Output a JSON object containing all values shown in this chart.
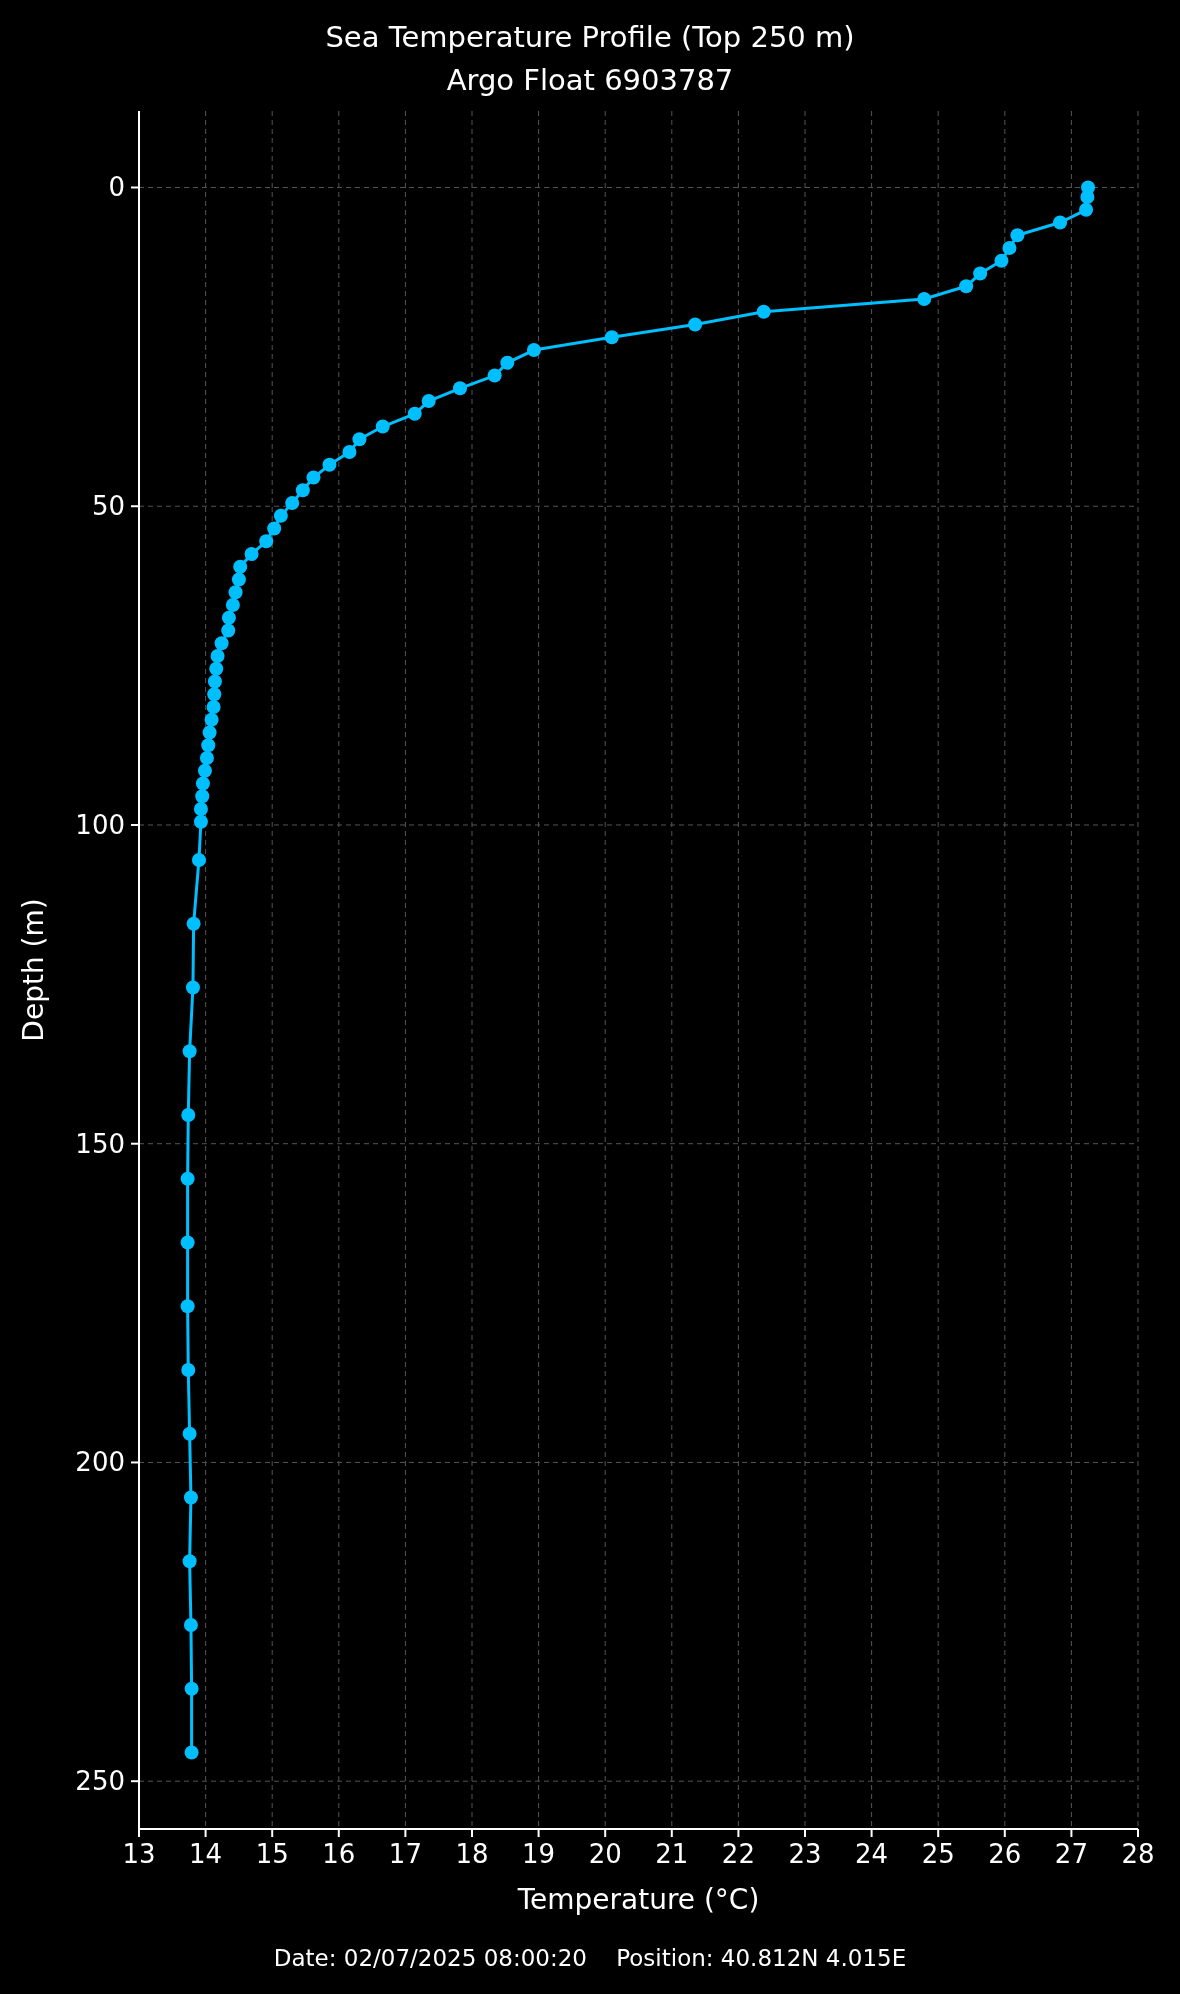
{
  "chart_data": {
    "type": "line",
    "title": "Sea Temperature Profile (Top 250 m)",
    "subtitle": "Argo Float 6903787",
    "xlabel": "Temperature (°C)",
    "ylabel": "Depth (m)",
    "annotations": [
      "Date: 02/07/2025 08:00:20    Position: 40.812N 4.015E"
    ],
    "xlim": [
      13,
      28
    ],
    "xticks": [
      13,
      14,
      15,
      16,
      17,
      18,
      19,
      20,
      21,
      22,
      23,
      24,
      25,
      26,
      27,
      28
    ],
    "ylim": [
      257.5,
      -12
    ],
    "yticks": [
      0,
      50,
      100,
      150,
      200,
      250
    ],
    "grid": true,
    "marker": "circle",
    "line_style": "solid",
    "series": [
      {
        "color": "#00bfff",
        "x": [
          27.25,
          27.24,
          27.22,
          26.83,
          26.19,
          26.07,
          25.95,
          25.63,
          25.42,
          24.79,
          22.38,
          21.35,
          20.1,
          18.93,
          18.53,
          18.34,
          17.82,
          17.35,
          17.14,
          16.66,
          16.31,
          16.16,
          15.86,
          15.62,
          15.46,
          15.3,
          15.13,
          15.03,
          14.91,
          14.69,
          14.52,
          14.5,
          14.45,
          14.41,
          14.35,
          14.34,
          14.24,
          14.18,
          14.16,
          14.14,
          14.13,
          14.12,
          14.09,
          14.06,
          14.04,
          14.02,
          13.99,
          13.96,
          13.95,
          13.93,
          13.93,
          13.9,
          13.82,
          13.81,
          13.76,
          13.74,
          13.73,
          13.73,
          13.73,
          13.74,
          13.76,
          13.78,
          13.76,
          13.78,
          13.79,
          13.79
        ],
        "values": [
          0,
          1.5,
          3.5,
          5.5,
          7.5,
          9.5,
          11.5,
          13.5,
          15.5,
          17.5,
          19.5,
          21.5,
          23.5,
          25.5,
          27.5,
          29.5,
          31.5,
          33.5,
          35.5,
          37.5,
          39.5,
          41.5,
          43.5,
          45.5,
          47.5,
          49.5,
          51.5,
          53.5,
          55.5,
          57.5,
          59.5,
          61.5,
          63.5,
          65.5,
          67.5,
          69.5,
          71.5,
          73.5,
          75.5,
          77.5,
          79.5,
          81.5,
          83.5,
          85.5,
          87.5,
          89.5,
          91.5,
          93.5,
          95.5,
          97.5,
          99.5,
          105.5,
          115.5,
          125.5,
          135.5,
          145.5,
          155.5,
          165.5,
          175.5,
          185.5,
          195.5,
          205.5,
          215.5,
          225.5,
          235.5,
          245.5
        ]
      }
    ]
  }
}
